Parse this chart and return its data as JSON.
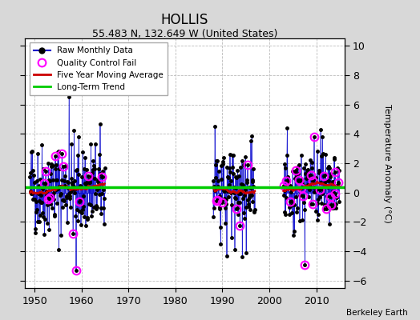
{
  "title": "HOLLIS",
  "subtitle": "55.483 N, 132.649 W (United States)",
  "ylabel": "Temperature Anomaly (°C)",
  "credit": "Berkeley Earth",
  "ylim": [
    -6.5,
    10.5
  ],
  "xlim": [
    1948,
    2016
  ],
  "yticks": [
    -6,
    -4,
    -2,
    0,
    2,
    4,
    6,
    8,
    10
  ],
  "xticks": [
    1950,
    1960,
    1970,
    1980,
    1990,
    2000,
    2010
  ],
  "outer_bg_color": "#d8d8d8",
  "plot_bg": "#ffffff",
  "long_term_trend_y": 0.35,
  "long_term_trend_color": "#00cc00",
  "moving_avg_color": "#cc0000",
  "raw_line_color": "#0000cc",
  "raw_dot_color": "#000000",
  "qc_fail_color": "#ff00ff",
  "grid_color": "#bbbbbb"
}
